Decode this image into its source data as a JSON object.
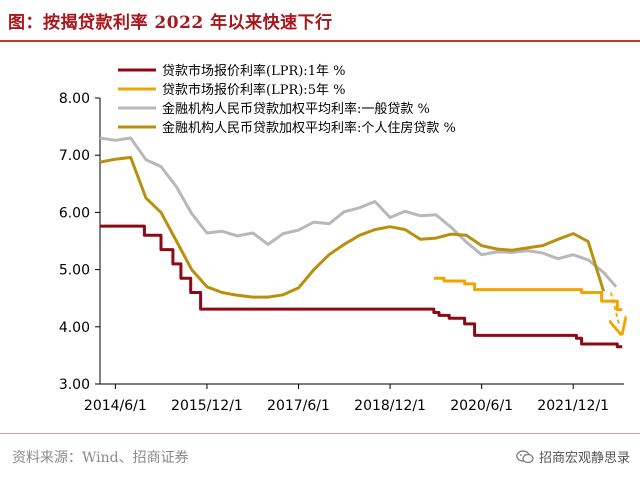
{
  "header": {
    "title": "图：按揭贷款利率 2022 年以来快速下行"
  },
  "footer": {
    "source": "资料来源：Wind、招商证券",
    "brand": "招商宏观静思录",
    "brand_icon": "wechat-icon"
  },
  "chart_data": {
    "type": "line",
    "ylim": [
      3.0,
      8.0
    ],
    "yticks": [
      3.0,
      4.0,
      5.0,
      6.0,
      7.0,
      8.0
    ],
    "ytick_labels": [
      "3.00",
      "4.00",
      "5.00",
      "6.00",
      "7.00",
      "8.00"
    ],
    "xlim": [
      "2014-03-01",
      "2022-10-01"
    ],
    "xticks": [
      "2014-06-01",
      "2015-12-01",
      "2017-06-01",
      "2018-12-01",
      "2020-06-01",
      "2021-12-01"
    ],
    "xtick_labels": [
      "2014/6/1",
      "2015/12/1",
      "2017/6/1",
      "2018/12/1",
      "2020/6/1",
      "2021/12/1"
    ],
    "grid": false,
    "legend_position": "top",
    "series": [
      {
        "name": "贷款市场报价利率(LPR):1年  %",
        "color": "#8b0a14",
        "step": true,
        "points": [
          [
            "2014-03-01",
            5.76
          ],
          [
            "2014-11-22",
            5.76
          ],
          [
            "2014-11-22",
            5.6
          ],
          [
            "2015-03-01",
            5.6
          ],
          [
            "2015-03-01",
            5.35
          ],
          [
            "2015-05-11",
            5.35
          ],
          [
            "2015-05-11",
            5.1
          ],
          [
            "2015-06-28",
            5.1
          ],
          [
            "2015-06-28",
            4.85
          ],
          [
            "2015-08-26",
            4.85
          ],
          [
            "2015-08-26",
            4.6
          ],
          [
            "2015-10-24",
            4.6
          ],
          [
            "2015-10-24",
            4.31
          ],
          [
            "2019-08-20",
            4.31
          ],
          [
            "2019-08-20",
            4.25
          ],
          [
            "2019-09-20",
            4.25
          ],
          [
            "2019-09-20",
            4.2
          ],
          [
            "2019-11-20",
            4.2
          ],
          [
            "2019-11-20",
            4.15
          ],
          [
            "2020-02-20",
            4.15
          ],
          [
            "2020-02-20",
            4.05
          ],
          [
            "2020-04-20",
            4.05
          ],
          [
            "2020-04-20",
            3.85
          ],
          [
            "2021-12-20",
            3.85
          ],
          [
            "2021-12-20",
            3.8
          ],
          [
            "2022-01-20",
            3.8
          ],
          [
            "2022-01-20",
            3.7
          ],
          [
            "2022-08-22",
            3.7
          ],
          [
            "2022-08-22",
            3.65
          ],
          [
            "2022-09-20",
            3.65
          ]
        ]
      },
      {
        "name": "贷款市场报价利率(LPR):5年  %",
        "color": "#f0a500",
        "step": true,
        "points": [
          [
            "2019-08-20",
            4.85
          ],
          [
            "2019-10-20",
            4.85
          ],
          [
            "2019-10-20",
            4.8
          ],
          [
            "2020-02-20",
            4.8
          ],
          [
            "2020-02-20",
            4.75
          ],
          [
            "2020-04-20",
            4.75
          ],
          [
            "2020-04-20",
            4.65
          ],
          [
            "2022-01-20",
            4.65
          ],
          [
            "2022-01-20",
            4.6
          ],
          [
            "2022-05-20",
            4.6
          ],
          [
            "2022-05-20",
            4.45
          ],
          [
            "2022-08-22",
            4.45
          ],
          [
            "2022-08-22",
            4.3
          ],
          [
            "2022-09-20",
            4.3
          ]
        ]
      },
      {
        "name": "金融机构人民币贷款加权平均利率:一般贷款  %",
        "color": "#b8b8b8",
        "step": false,
        "points": [
          [
            "2014-03-01",
            7.3
          ],
          [
            "2014-06-01",
            7.26
          ],
          [
            "2014-09-01",
            7.3
          ],
          [
            "2014-12-01",
            6.92
          ],
          [
            "2015-03-01",
            6.8
          ],
          [
            "2015-06-01",
            6.45
          ],
          [
            "2015-09-01",
            5.98
          ],
          [
            "2015-12-01",
            5.64
          ],
          [
            "2016-03-01",
            5.67
          ],
          [
            "2016-06-01",
            5.59
          ],
          [
            "2016-09-01",
            5.64
          ],
          [
            "2016-12-01",
            5.44
          ],
          [
            "2017-03-01",
            5.63
          ],
          [
            "2017-06-01",
            5.69
          ],
          [
            "2017-09-01",
            5.83
          ],
          [
            "2017-12-01",
            5.8
          ],
          [
            "2018-03-01",
            6.01
          ],
          [
            "2018-06-01",
            6.08
          ],
          [
            "2018-09-01",
            6.19
          ],
          [
            "2018-12-01",
            5.91
          ],
          [
            "2019-03-01",
            6.02
          ],
          [
            "2019-06-01",
            5.94
          ],
          [
            "2019-09-01",
            5.96
          ],
          [
            "2019-12-01",
            5.74
          ],
          [
            "2020-03-01",
            5.48
          ],
          [
            "2020-06-01",
            5.26
          ],
          [
            "2020-09-01",
            5.31
          ],
          [
            "2020-12-01",
            5.3
          ],
          [
            "2021-03-01",
            5.33
          ],
          [
            "2021-06-01",
            5.29
          ],
          [
            "2021-09-01",
            5.19
          ],
          [
            "2021-12-01",
            5.26
          ],
          [
            "2022-03-01",
            5.17
          ],
          [
            "2022-06-01",
            4.95
          ],
          [
            "2022-08-15",
            4.7
          ]
        ]
      },
      {
        "name": "金融机构人民币贷款加权平均利率:个人住房贷款  %",
        "color": "#b8900e",
        "step": false,
        "points": [
          [
            "2014-03-01",
            6.88
          ],
          [
            "2014-06-01",
            6.93
          ],
          [
            "2014-09-01",
            6.96
          ],
          [
            "2014-12-01",
            6.25
          ],
          [
            "2015-03-01",
            6.0
          ],
          [
            "2015-06-01",
            5.5
          ],
          [
            "2015-09-01",
            5.0
          ],
          [
            "2015-12-01",
            4.7
          ],
          [
            "2016-03-01",
            4.6
          ],
          [
            "2016-06-01",
            4.55
          ],
          [
            "2016-09-01",
            4.52
          ],
          [
            "2016-12-01",
            4.52
          ],
          [
            "2017-03-01",
            4.56
          ],
          [
            "2017-06-01",
            4.68
          ],
          [
            "2017-09-01",
            5.0
          ],
          [
            "2017-12-01",
            5.26
          ],
          [
            "2018-03-01",
            5.44
          ],
          [
            "2018-06-01",
            5.6
          ],
          [
            "2018-09-01",
            5.7
          ],
          [
            "2018-12-01",
            5.75
          ],
          [
            "2019-03-01",
            5.7
          ],
          [
            "2019-06-01",
            5.53
          ],
          [
            "2019-09-01",
            5.55
          ],
          [
            "2019-12-01",
            5.62
          ],
          [
            "2020-03-01",
            5.6
          ],
          [
            "2020-06-01",
            5.42
          ],
          [
            "2020-09-01",
            5.36
          ],
          [
            "2020-12-01",
            5.34
          ],
          [
            "2021-03-01",
            5.38
          ],
          [
            "2021-06-01",
            5.42
          ],
          [
            "2021-09-01",
            5.53
          ],
          [
            "2021-12-01",
            5.63
          ],
          [
            "2022-03-01",
            5.49
          ],
          [
            "2022-06-01",
            4.62
          ]
        ]
      }
    ],
    "annotations": [
      {
        "type": "arrow",
        "color": "#f0a500",
        "from": [
          "2022-07-15",
          4.6
        ],
        "to": [
          "2022-09-05",
          4.0
        ]
      }
    ]
  }
}
